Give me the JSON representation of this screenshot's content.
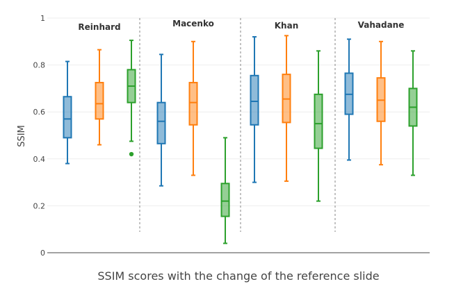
{
  "chart_data": {
    "type": "box",
    "xlabel": "SSIM scores with the change of the reference slide",
    "ylabel": "SSIM",
    "ylim": [
      0,
      1
    ],
    "yticks": [
      0,
      0.2,
      0.4,
      0.6,
      0.8,
      1
    ],
    "ytick_labels": [
      "0",
      "0.2",
      "0.4",
      "0.6",
      "0.8",
      "1"
    ],
    "grid": true,
    "legend": "none",
    "series_colors": [
      "#1f77b4",
      "#ff7f0e",
      "#2ca02c"
    ],
    "groups": [
      {
        "label": "Reinhard",
        "boxes": [
          {
            "min": 0.38,
            "q1": 0.49,
            "median": 0.57,
            "q3": 0.665,
            "max": 0.815,
            "outliers": []
          },
          {
            "min": 0.46,
            "q1": 0.57,
            "median": 0.635,
            "q3": 0.725,
            "max": 0.865,
            "outliers": []
          },
          {
            "min": 0.475,
            "q1": 0.64,
            "median": 0.71,
            "q3": 0.78,
            "max": 0.905,
            "outliers": [
              0.42
            ]
          }
        ]
      },
      {
        "label": "Macenko",
        "boxes": [
          {
            "min": 0.285,
            "q1": 0.465,
            "median": 0.56,
            "q3": 0.64,
            "max": 0.845,
            "outliers": []
          },
          {
            "min": 0.33,
            "q1": 0.545,
            "median": 0.64,
            "q3": 0.725,
            "max": 0.9,
            "outliers": []
          },
          {
            "min": 0.04,
            "q1": 0.155,
            "median": 0.22,
            "q3": 0.295,
            "max": 0.49,
            "outliers": []
          }
        ]
      },
      {
        "label": "Khan",
        "boxes": [
          {
            "min": 0.3,
            "q1": 0.545,
            "median": 0.645,
            "q3": 0.755,
            "max": 0.92,
            "outliers": []
          },
          {
            "min": 0.305,
            "q1": 0.555,
            "median": 0.655,
            "q3": 0.76,
            "max": 0.925,
            "outliers": []
          },
          {
            "min": 0.22,
            "q1": 0.445,
            "median": 0.55,
            "q3": 0.675,
            "max": 0.86,
            "outliers": []
          }
        ]
      },
      {
        "label": "Vahadane",
        "boxes": [
          {
            "min": 0.395,
            "q1": 0.59,
            "median": 0.675,
            "q3": 0.765,
            "max": 0.91,
            "outliers": []
          },
          {
            "min": 0.375,
            "q1": 0.56,
            "median": 0.65,
            "q3": 0.745,
            "max": 0.9,
            "outliers": []
          },
          {
            "min": 0.33,
            "q1": 0.54,
            "median": 0.62,
            "q3": 0.7,
            "max": 0.86,
            "outliers": []
          }
        ]
      }
    ]
  }
}
